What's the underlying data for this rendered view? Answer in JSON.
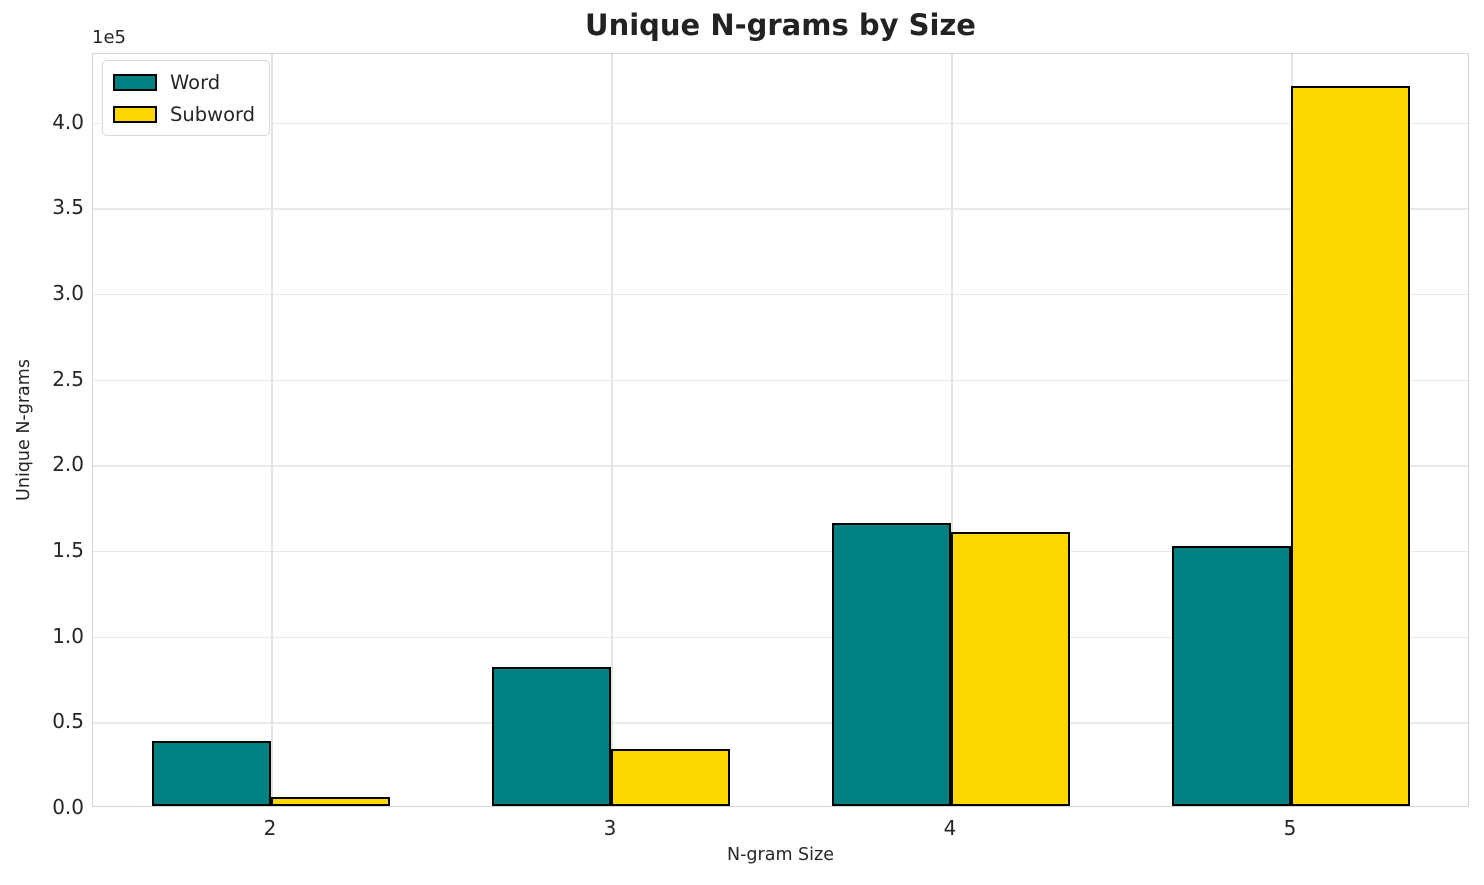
{
  "title": "Unique N-grams by Size",
  "axes": {
    "xlabel": "N-gram Size",
    "ylabel": "Unique N-grams",
    "offset_text": "1e5",
    "y_tick_labels": [
      "0.0",
      "0.5",
      "1.0",
      "1.5",
      "2.0",
      "2.5",
      "3.0",
      "3.5",
      "4.0"
    ],
    "x_tick_labels": [
      "2",
      "3",
      "4",
      "5"
    ]
  },
  "legend": {
    "items": [
      {
        "label": "Word",
        "color": "#008080"
      },
      {
        "label": "Subword",
        "color": "#FFD700"
      }
    ]
  },
  "colors": {
    "word": "#008080",
    "subword": "#FFD700",
    "bar_edge": "#000000",
    "grid": "#e9e9e9",
    "text": "#262626"
  },
  "chart_data": {
    "type": "bar",
    "title": "Unique N-grams by Size",
    "xlabel": "N-gram Size",
    "ylabel": "Unique N-grams",
    "categories": [
      2,
      3,
      4,
      5
    ],
    "series": [
      {
        "name": "Word",
        "color": "#008080",
        "values": [
          38000,
          81000,
          165000,
          152000
        ]
      },
      {
        "name": "Subword",
        "color": "#FFD700",
        "values": [
          5000,
          33000,
          160000,
          420000
        ]
      }
    ],
    "ylim": [
      0,
      440000
    ],
    "y_tick_step": 50000,
    "y_tick_max": 400000,
    "scale_multiplier": "1e5",
    "grid": true,
    "legend_position": "upper left",
    "bar_edge_color": "#000000"
  }
}
